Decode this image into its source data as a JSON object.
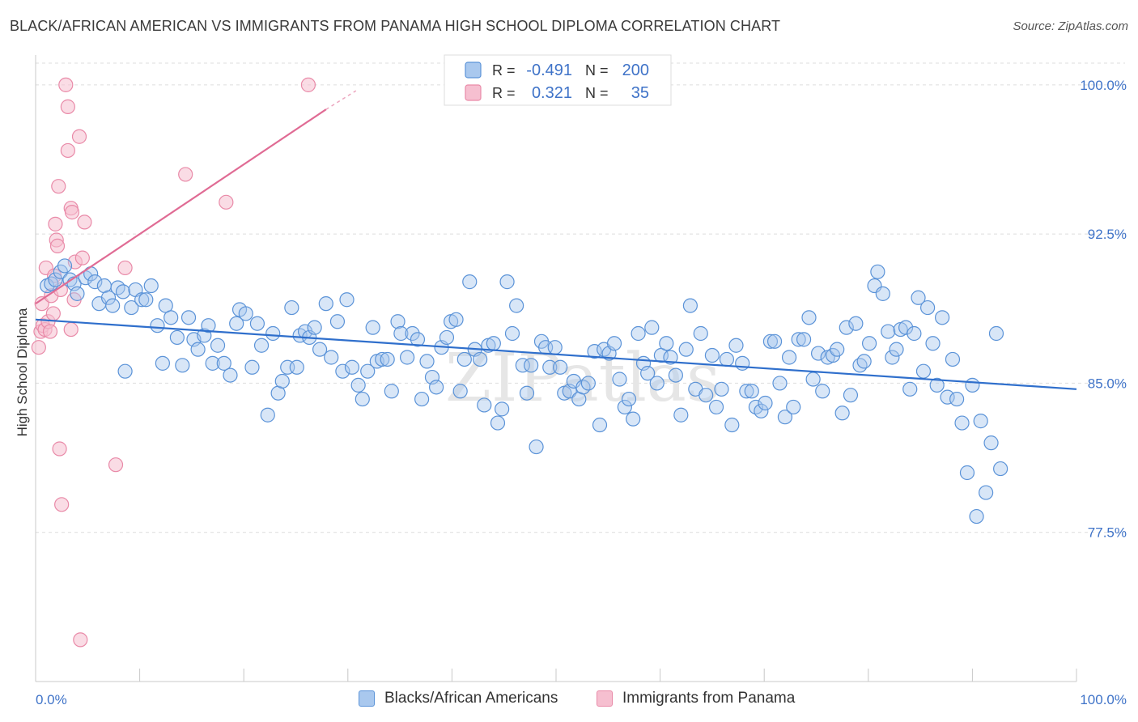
{
  "header": {
    "title": "BLACK/AFRICAN AMERICAN VS IMMIGRANTS FROM PANAMA HIGH SCHOOL DIPLOMA CORRELATION CHART",
    "source": "Source: ZipAtlas.com"
  },
  "watermark": "ZIPatlas",
  "colors": {
    "blue_fill": "#a9c8ee",
    "blue_stroke": "#5b93d8",
    "blue_line": "#2f6fcc",
    "pink_fill": "#f6bfd0",
    "pink_stroke": "#e98aa8",
    "pink_line": "#e06b94",
    "axis_text": "#3f73c8",
    "grid": "#dddddd"
  },
  "legend": {
    "rows": [
      {
        "r_label": "R =",
        "r_value": "-0.491",
        "n_label": "N =",
        "n_value": "200"
      },
      {
        "r_label": "R =",
        "r_value": "0.321",
        "n_label": "N =",
        "n_value": "35"
      }
    ]
  },
  "chart_data": {
    "type": "scatter",
    "title": "BLACK/AFRICAN AMERICAN VS IMMIGRANTS FROM PANAMA HIGH SCHOOL DIPLOMA CORRELATION CHART",
    "ylabel": "High School Diploma",
    "xlabel": "",
    "xlim": [
      0,
      100
    ],
    "ylim": [
      70.0,
      101.5
    ],
    "x_tick_labels": [
      "0.0%",
      "100.0%"
    ],
    "y_ticks": [
      77.5,
      85.0,
      92.5,
      100.0
    ],
    "y_tick_labels": [
      "77.5%",
      "85.0%",
      "92.5%",
      "100.0%"
    ],
    "grid": true,
    "series": [
      {
        "name": "Blacks/African Americans",
        "R": -0.491,
        "N": 200,
        "trend": {
          "x": [
            0,
            100
          ],
          "y": [
            88.2,
            84.7
          ]
        },
        "points": [
          [
            1.1,
            89.9
          ],
          [
            1.5,
            90.0
          ],
          [
            1.9,
            90.2
          ],
          [
            2.4,
            90.6
          ],
          [
            2.8,
            90.9
          ],
          [
            3.3,
            90.2
          ],
          [
            3.7,
            90.0
          ],
          [
            4.0,
            89.5
          ],
          [
            4.8,
            90.3
          ],
          [
            5.3,
            90.5
          ],
          [
            5.7,
            90.1
          ],
          [
            6.1,
            89.0
          ],
          [
            6.6,
            89.9
          ],
          [
            7.0,
            89.3
          ],
          [
            7.4,
            88.9
          ],
          [
            7.9,
            89.8
          ],
          [
            8.4,
            89.6
          ],
          [
            8.6,
            85.6
          ],
          [
            9.2,
            88.8
          ],
          [
            9.6,
            89.7
          ],
          [
            10.2,
            89.2
          ],
          [
            10.6,
            89.2
          ],
          [
            11.1,
            89.9
          ],
          [
            11.7,
            87.9
          ],
          [
            12.2,
            86.0
          ],
          [
            12.5,
            88.9
          ],
          [
            13.0,
            88.3
          ],
          [
            13.6,
            87.3
          ],
          [
            14.1,
            85.9
          ],
          [
            14.7,
            88.3
          ],
          [
            15.2,
            87.2
          ],
          [
            15.6,
            86.7
          ],
          [
            16.2,
            87.4
          ],
          [
            16.6,
            87.9
          ],
          [
            17.0,
            86.0
          ],
          [
            17.5,
            86.9
          ],
          [
            18.1,
            86.0
          ],
          [
            18.7,
            85.4
          ],
          [
            19.3,
            88.0
          ],
          [
            19.6,
            88.7
          ],
          [
            20.2,
            88.5
          ],
          [
            20.8,
            85.8
          ],
          [
            21.3,
            88.0
          ],
          [
            21.7,
            86.9
          ],
          [
            22.3,
            83.4
          ],
          [
            22.8,
            87.5
          ],
          [
            23.3,
            84.5
          ],
          [
            23.7,
            85.1
          ],
          [
            24.2,
            85.8
          ],
          [
            24.6,
            88.8
          ],
          [
            25.1,
            85.8
          ],
          [
            25.4,
            87.4
          ],
          [
            25.9,
            87.6
          ],
          [
            26.3,
            87.3
          ],
          [
            26.8,
            87.8
          ],
          [
            27.3,
            86.7
          ],
          [
            27.9,
            89.0
          ],
          [
            28.4,
            86.3
          ],
          [
            29.0,
            88.1
          ],
          [
            29.5,
            85.6
          ],
          [
            29.9,
            89.2
          ],
          [
            30.4,
            85.8
          ],
          [
            31.0,
            84.9
          ],
          [
            31.4,
            84.2
          ],
          [
            31.9,
            85.6
          ],
          [
            32.4,
            87.8
          ],
          [
            32.8,
            86.1
          ],
          [
            33.3,
            86.2
          ],
          [
            33.8,
            86.2
          ],
          [
            34.2,
            84.6
          ],
          [
            34.8,
            88.1
          ],
          [
            35.1,
            87.5
          ],
          [
            35.7,
            86.3
          ],
          [
            36.2,
            87.5
          ],
          [
            36.7,
            87.2
          ],
          [
            37.1,
            84.2
          ],
          [
            37.6,
            86.1
          ],
          [
            38.1,
            85.3
          ],
          [
            38.5,
            84.8
          ],
          [
            39.0,
            86.8
          ],
          [
            39.5,
            87.3
          ],
          [
            39.9,
            88.1
          ],
          [
            40.4,
            88.2
          ],
          [
            40.8,
            84.6
          ],
          [
            41.2,
            86.2
          ],
          [
            41.7,
            90.1
          ],
          [
            42.2,
            86.7
          ],
          [
            42.7,
            86.2
          ],
          [
            43.1,
            83.9
          ],
          [
            43.5,
            86.9
          ],
          [
            44.0,
            87.0
          ],
          [
            44.4,
            83.0
          ],
          [
            44.8,
            83.7
          ],
          [
            45.3,
            90.1
          ],
          [
            45.8,
            87.5
          ],
          [
            46.2,
            88.9
          ],
          [
            46.8,
            85.9
          ],
          [
            47.2,
            84.5
          ],
          [
            47.6,
            85.9
          ],
          [
            48.1,
            81.8
          ],
          [
            48.6,
            87.1
          ],
          [
            49.0,
            86.8
          ],
          [
            49.4,
            85.8
          ],
          [
            49.9,
            86.8
          ],
          [
            50.4,
            85.8
          ],
          [
            50.8,
            84.5
          ],
          [
            51.3,
            84.6
          ],
          [
            51.7,
            85.1
          ],
          [
            52.2,
            84.2
          ],
          [
            52.6,
            84.8
          ],
          [
            53.1,
            85.0
          ],
          [
            53.7,
            86.6
          ],
          [
            54.2,
            82.9
          ],
          [
            54.6,
            86.7
          ],
          [
            55.1,
            86.5
          ],
          [
            55.6,
            87.0
          ],
          [
            56.1,
            85.2
          ],
          [
            56.6,
            83.8
          ],
          [
            57.0,
            84.2
          ],
          [
            57.4,
            83.2
          ],
          [
            57.9,
            87.5
          ],
          [
            58.4,
            86.0
          ],
          [
            58.8,
            85.5
          ],
          [
            59.2,
            87.8
          ],
          [
            59.7,
            85.0
          ],
          [
            60.1,
            86.4
          ],
          [
            60.6,
            87.0
          ],
          [
            61.0,
            86.3
          ],
          [
            61.5,
            85.4
          ],
          [
            62.0,
            83.4
          ],
          [
            62.5,
            86.7
          ],
          [
            62.9,
            88.9
          ],
          [
            63.4,
            84.7
          ],
          [
            63.9,
            87.5
          ],
          [
            64.4,
            84.4
          ],
          [
            65.0,
            86.4
          ],
          [
            65.4,
            83.8
          ],
          [
            65.9,
            84.7
          ],
          [
            66.4,
            86.2
          ],
          [
            66.9,
            82.9
          ],
          [
            67.3,
            86.9
          ],
          [
            67.9,
            86.0
          ],
          [
            68.3,
            84.6
          ],
          [
            68.8,
            84.6
          ],
          [
            69.2,
            83.8
          ],
          [
            69.7,
            83.6
          ],
          [
            70.1,
            84.0
          ],
          [
            70.6,
            87.1
          ],
          [
            71.0,
            87.1
          ],
          [
            71.5,
            85.0
          ],
          [
            72.0,
            83.3
          ],
          [
            72.4,
            86.3
          ],
          [
            72.8,
            83.8
          ],
          [
            73.3,
            87.2
          ],
          [
            73.8,
            87.2
          ],
          [
            74.3,
            88.3
          ],
          [
            74.7,
            85.2
          ],
          [
            75.2,
            86.5
          ],
          [
            75.6,
            84.6
          ],
          [
            76.1,
            86.3
          ],
          [
            76.6,
            86.4
          ],
          [
            77.0,
            86.7
          ],
          [
            77.5,
            83.5
          ],
          [
            77.9,
            87.8
          ],
          [
            78.3,
            84.4
          ],
          [
            78.8,
            88.0
          ],
          [
            79.2,
            85.9
          ],
          [
            79.6,
            86.1
          ],
          [
            80.1,
            87.0
          ],
          [
            80.6,
            89.9
          ],
          [
            80.9,
            90.6
          ],
          [
            81.4,
            89.5
          ],
          [
            81.9,
            87.6
          ],
          [
            82.3,
            86.3
          ],
          [
            82.7,
            86.7
          ],
          [
            83.1,
            87.7
          ],
          [
            83.6,
            87.8
          ],
          [
            84.0,
            84.7
          ],
          [
            84.4,
            87.5
          ],
          [
            84.8,
            89.3
          ],
          [
            85.3,
            85.6
          ],
          [
            85.7,
            88.8
          ],
          [
            86.2,
            87.0
          ],
          [
            86.6,
            84.9
          ],
          [
            87.1,
            88.3
          ],
          [
            87.6,
            84.3
          ],
          [
            88.1,
            86.2
          ],
          [
            88.5,
            84.2
          ],
          [
            89.0,
            83.0
          ],
          [
            89.5,
            80.5
          ],
          [
            90.0,
            84.9
          ],
          [
            90.4,
            78.3
          ],
          [
            90.8,
            83.1
          ],
          [
            91.3,
            79.5
          ],
          [
            91.8,
            82.0
          ],
          [
            92.3,
            87.5
          ],
          [
            92.7,
            80.7
          ]
        ]
      },
      {
        "name": "Immigrants from Panama",
        "R": 0.321,
        "N": 35,
        "trend": {
          "x": [
            0,
            30
          ],
          "y": 89.0,
          "y_end": 99.5
        },
        "points": [
          [
            0.3,
            86.8
          ],
          [
            0.5,
            87.6
          ],
          [
            0.6,
            89.0
          ],
          [
            0.7,
            87.9
          ],
          [
            0.9,
            87.7
          ],
          [
            1.0,
            90.8
          ],
          [
            1.2,
            88.1
          ],
          [
            1.4,
            87.6
          ],
          [
            1.5,
            89.4
          ],
          [
            1.7,
            88.5
          ],
          [
            1.8,
            90.4
          ],
          [
            1.9,
            93.0
          ],
          [
            2.0,
            92.2
          ],
          [
            2.1,
            91.9
          ],
          [
            2.2,
            94.9
          ],
          [
            2.3,
            81.7
          ],
          [
            2.4,
            89.7
          ],
          [
            2.5,
            78.9
          ],
          [
            2.9,
            100.0
          ],
          [
            3.1,
            96.7
          ],
          [
            3.1,
            98.9
          ],
          [
            3.4,
            87.7
          ],
          [
            3.4,
            93.8
          ],
          [
            3.5,
            93.6
          ],
          [
            3.7,
            89.2
          ],
          [
            3.8,
            91.1
          ],
          [
            4.2,
            97.4
          ],
          [
            4.3,
            72.1
          ],
          [
            4.5,
            91.3
          ],
          [
            4.7,
            93.1
          ],
          [
            7.7,
            80.9
          ],
          [
            8.6,
            90.8
          ],
          [
            14.4,
            95.5
          ],
          [
            18.3,
            94.1
          ],
          [
            26.2,
            100.0
          ]
        ]
      }
    ]
  },
  "bottom_legend": {
    "items": [
      "Blacks/African Americans",
      "Immigrants from Panama"
    ]
  }
}
